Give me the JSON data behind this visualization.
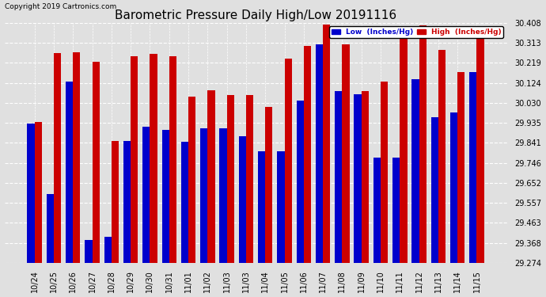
{
  "title": "Barometric Pressure Daily High/Low 20191116",
  "copyright": "Copyright 2019 Cartronics.com",
  "legend_low": "Low  (Inches/Hg)",
  "legend_high": "High  (Inches/Hg)",
  "categories": [
    "10/24",
    "10/25",
    "10/26",
    "10/27",
    "10/28",
    "10/29",
    "10/30",
    "10/31",
    "11/01",
    "11/02",
    "11/03",
    "11/03",
    "11/04",
    "11/05",
    "11/06",
    "11/07",
    "11/08",
    "11/09",
    "11/10",
    "11/11",
    "11/12",
    "11/13",
    "11/14",
    "11/15"
  ],
  "low_values": [
    29.93,
    29.6,
    30.13,
    29.38,
    29.395,
    29.85,
    29.915,
    29.9,
    29.845,
    29.91,
    29.91,
    29.87,
    29.8,
    29.8,
    30.04,
    30.305,
    30.085,
    30.07,
    29.77,
    29.77,
    30.14,
    29.96,
    29.985,
    30.175
  ],
  "high_values": [
    29.94,
    30.265,
    30.27,
    30.225,
    29.85,
    30.25,
    30.26,
    30.25,
    30.06,
    30.09,
    30.065,
    30.065,
    30.01,
    30.24,
    30.3,
    30.4,
    30.305,
    30.085,
    30.13,
    30.38,
    30.395,
    30.28,
    30.175,
    30.35
  ],
  "low_color": "#0000cc",
  "high_color": "#cc0000",
  "ylim_min": 29.274,
  "ylim_max": 30.408,
  "yticks": [
    29.274,
    29.368,
    29.463,
    29.557,
    29.652,
    29.746,
    29.841,
    29.935,
    30.03,
    30.124,
    30.219,
    30.313,
    30.408
  ],
  "bg_color": "#e0e0e0",
  "title_fontsize": 11,
  "tick_fontsize": 7,
  "bar_width": 0.38,
  "figwidth": 6.9,
  "figheight": 3.75,
  "dpi": 100
}
